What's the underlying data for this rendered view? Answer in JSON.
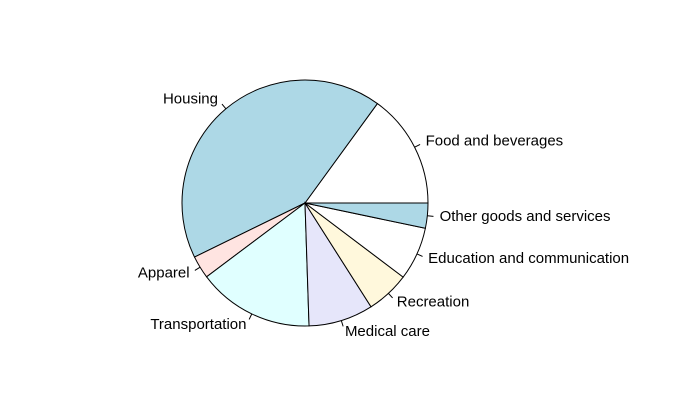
{
  "chart_data": {
    "type": "pie",
    "categories": [
      "Food and beverages",
      "Housing",
      "Apparel",
      "Transportation",
      "Medical care",
      "Recreation",
      "Education and communication",
      "Other goods and services"
    ],
    "values": [
      15,
      42.3,
      3,
      15.3,
      8.5,
      5.7,
      7,
      3.3
    ],
    "colors": [
      "#ffffff",
      "#add8e6",
      "#ffe4e1",
      "#e0ffff",
      "#e6e6fa",
      "#fff8dc",
      "#ffffff",
      "#add8e6"
    ]
  }
}
